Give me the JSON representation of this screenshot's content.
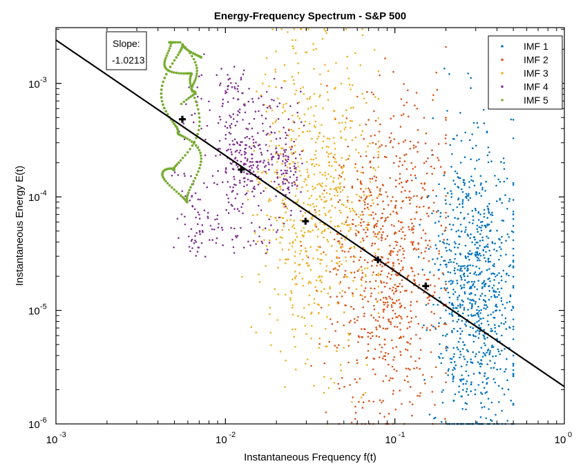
{
  "chart_data": {
    "type": "scatter",
    "title": "Energy-Frequency Spectrum - S&P 500",
    "xlabel": "Instantaneous Frequency f(t)",
    "ylabel": "Instantaneous Energy E(t)",
    "xscale": "log",
    "yscale": "log",
    "xlim": [
      0.001,
      1
    ],
    "ylim": [
      1e-06,
      0.0031
    ],
    "grid": false,
    "legend_position": "top-right",
    "x_ticks": [
      {
        "value": 0.001,
        "base": "10",
        "exp": "-3"
      },
      {
        "value": 0.01,
        "base": "10",
        "exp": "-2"
      },
      {
        "value": 0.1,
        "base": "10",
        "exp": "-1"
      },
      {
        "value": 1,
        "base": "10",
        "exp": "0"
      }
    ],
    "y_ticks": [
      {
        "value": 1e-06,
        "base": "10",
        "exp": "-6"
      },
      {
        "value": 1e-05,
        "base": "10",
        "exp": "-5"
      },
      {
        "value": 0.0001,
        "base": "10",
        "exp": "-4"
      },
      {
        "value": 0.001,
        "base": "10",
        "exp": "-3"
      }
    ],
    "series": [
      {
        "name": "IMF 1",
        "color": "#0072bd",
        "f_range": [
          0.15,
          0.5
        ],
        "E_range": [
          1e-06,
          0.0025
        ],
        "center": [
          0.3,
          1.5e-05
        ],
        "count": 900
      },
      {
        "name": "IMF 2",
        "color": "#d95319",
        "f_range": [
          0.04,
          0.2
        ],
        "E_range": [
          1e-06,
          0.003
        ],
        "center": [
          0.09,
          3e-05
        ],
        "count": 800
      },
      {
        "name": "IMF 3",
        "color": "#edb120",
        "f_range": [
          0.015,
          0.08
        ],
        "E_range": [
          1e-06,
          0.003
        ],
        "center": [
          0.035,
          0.0001
        ],
        "count": 700
      },
      {
        "name": "IMF 4",
        "color": "#7e2f8e",
        "f_range": [
          0.0025,
          0.03
        ],
        "E_range": [
          3e-06,
          0.003
        ],
        "center": [
          0.012,
          0.0002
        ],
        "count": 500
      },
      {
        "name": "IMF 5",
        "color": "#77ac30",
        "f_range": [
          0.0041,
          0.0072
        ],
        "E_range": [
          9e-05,
          0.0023
        ],
        "center": [
          0.0055,
          0.0005
        ],
        "count": 300
      }
    ],
    "mean_points": [
      {
        "f": 0.00557,
        "E": 0.000483
      },
      {
        "f": 0.0124,
        "E": 0.000174
      },
      {
        "f": 0.0297,
        "E": 6.1e-05
      },
      {
        "f": 0.0794,
        "E": 2.79e-05
      },
      {
        "f": 0.152,
        "E": 1.64e-05
      }
    ],
    "fit_line": {
      "slope": -1.0213,
      "from": {
        "f": 0.001,
        "E": 0.00241
      },
      "to": {
        "f": 1,
        "E": 2.13e-06
      }
    },
    "annotation": {
      "line1": "Slope:",
      "line2": "-1.0213"
    }
  }
}
